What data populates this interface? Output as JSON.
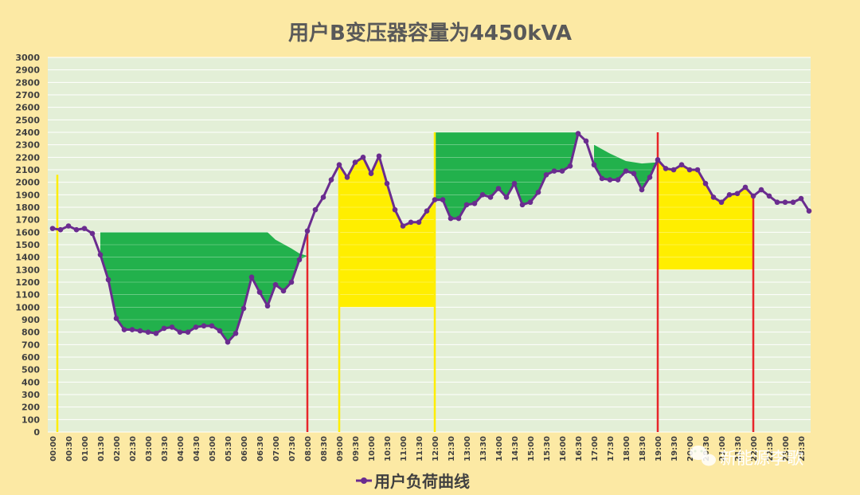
{
  "chart_data": {
    "type": "line",
    "title": "用户B变压器容量为4450kVA",
    "ylim": [
      0,
      3000
    ],
    "ystep": 100,
    "x_labels": [
      "00:00",
      "00:30",
      "01:00",
      "01:30",
      "02:00",
      "02:30",
      "03:00",
      "03:30",
      "04:00",
      "04:30",
      "05:00",
      "05:30",
      "06:00",
      "06:30",
      "07:00",
      "07:30",
      "08:00",
      "08:30",
      "09:00",
      "09:30",
      "10:00",
      "10:30",
      "11:00",
      "11:30",
      "12:00",
      "12:30",
      "13:00",
      "13:30",
      "14:00",
      "14:30",
      "15:00",
      "15:30",
      "16:00",
      "16:30",
      "17:00",
      "17:30",
      "18:00",
      "18:30",
      "19:00",
      "19:30",
      "20:00",
      "20:30",
      "21:00",
      "21:30",
      "22:00",
      "22:30",
      "23:00",
      "23:30"
    ],
    "series": [
      {
        "name": "用户负荷曲线",
        "color": "#6a2c8f",
        "values": [
          1630,
          1620,
          1650,
          1620,
          1630,
          1590,
          1420,
          1220,
          910,
          820,
          820,
          810,
          800,
          790,
          830,
          840,
          800,
          800,
          840,
          850,
          850,
          810,
          720,
          790,
          990,
          1240,
          1120,
          1010,
          1180,
          1130,
          1200,
          1380,
          1610,
          1780,
          1880,
          2020,
          2140,
          2040,
          2160,
          2200,
          2070,
          2210,
          1990,
          1780,
          1650,
          1680,
          1680,
          1770,
          1860,
          1860,
          1710,
          1710,
          1820,
          1830,
          1900,
          1880,
          1950,
          1880,
          1990,
          1820,
          1840,
          1920,
          2060,
          2090,
          2090,
          2130,
          2390,
          2330,
          2140,
          2030,
          2020,
          2020,
          2090,
          2070,
          1940,
          2040,
          2180,
          2110,
          2100,
          2140,
          2100,
          2100,
          1990,
          1880,
          1840,
          1900,
          1910,
          1960,
          1890,
          1940,
          1890,
          1840,
          1840,
          1840,
          1870,
          1770
        ]
      }
    ],
    "shaded_regions": [
      {
        "color": "#22b14c",
        "base": 1600,
        "from": 5.5,
        "to": 15.5,
        "cap": [
          [
            5.5,
            1600
          ],
          [
            14.5,
            1600
          ],
          [
            15,
            1500
          ],
          [
            16,
            1450
          ],
          [
            16.5,
            1420
          ],
          [
            17,
            1410
          ],
          [
            17.5,
            1410
          ],
          [
            15.5,
            1410
          ]
        ]
      },
      {
        "color": "#ffee00",
        "base": 1000,
        "from": 36,
        "to": 48
      },
      {
        "color": "#22b14c",
        "base": 2400,
        "from": 48,
        "to": 66
      },
      {
        "color": "#22b14c",
        "from": 66,
        "to": 76
      },
      {
        "color": "#ffee00",
        "base": 1300,
        "from": 76,
        "to": 88
      }
    ],
    "vertical_markers": [
      {
        "x": 0,
        "color": "#ffee00",
        "top": 2060
      },
      {
        "x": 32,
        "color": "#e8262b",
        "top": 1610
      },
      {
        "x": 36,
        "color": "#ffee00",
        "top": 2140
      },
      {
        "x": 48,
        "color": "#ffee00",
        "top": 2400
      },
      {
        "x": 76,
        "color": "#e8262b",
        "top": 2400
      },
      {
        "x": 88,
        "color": "#e8262b",
        "top": 1900
      }
    ],
    "legend": "bottom",
    "grid": true
  },
  "watermark": {
    "text": "新能源李歌",
    "icon": "wechat-icon"
  }
}
